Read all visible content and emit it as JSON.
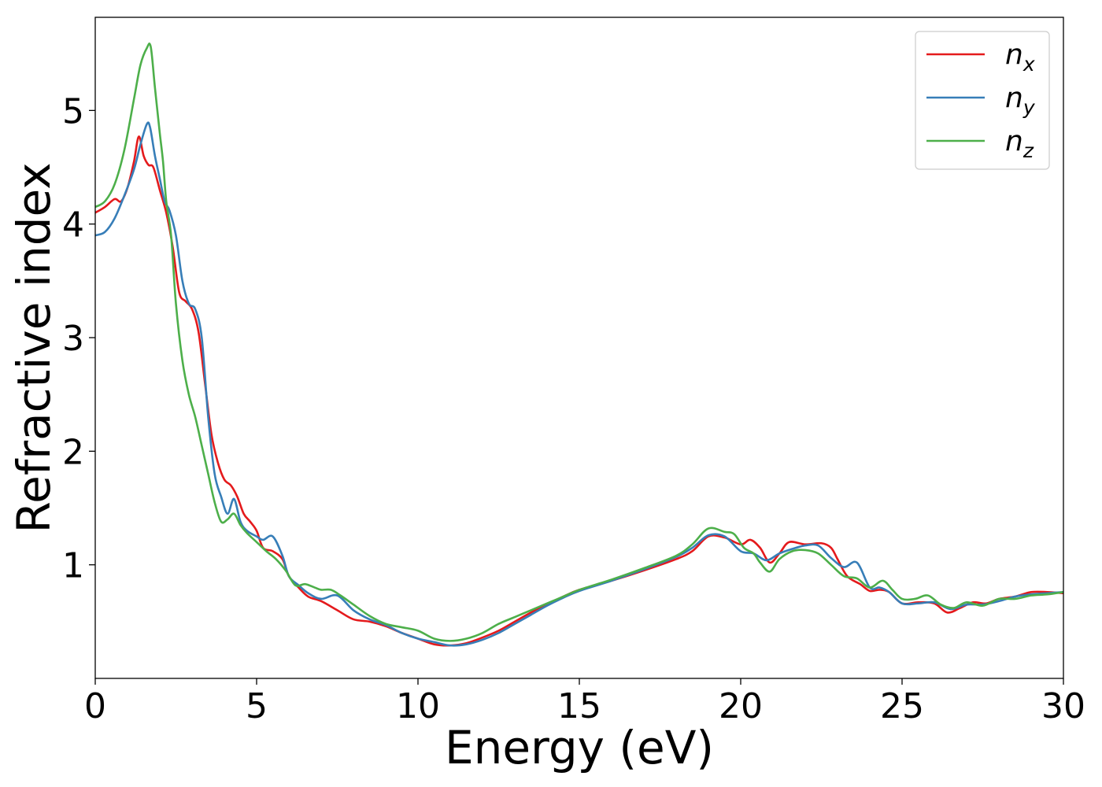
{
  "chart_data": {
    "type": "line",
    "title": "",
    "xlabel": "Energy (eV)",
    "ylabel": "Refractive index",
    "xlim": [
      0,
      30
    ],
    "ylim": [
      0,
      5.82
    ],
    "xticks": [
      0,
      5,
      10,
      15,
      20,
      25,
      30
    ],
    "yticks": [
      1,
      2,
      3,
      4,
      5
    ],
    "grid": false,
    "legend_position": "top-right",
    "series": [
      {
        "name": "n",
        "subscript": "x",
        "color": "#e41a1c",
        "points": [
          [
            0,
            4.1
          ],
          [
            0.3,
            4.15
          ],
          [
            0.6,
            4.22
          ],
          [
            0.8,
            4.2
          ],
          [
            1.0,
            4.32
          ],
          [
            1.2,
            4.55
          ],
          [
            1.35,
            4.77
          ],
          [
            1.5,
            4.6
          ],
          [
            1.65,
            4.52
          ],
          [
            1.8,
            4.5
          ],
          [
            2.0,
            4.3
          ],
          [
            2.2,
            4.1
          ],
          [
            2.4,
            3.8
          ],
          [
            2.6,
            3.4
          ],
          [
            2.8,
            3.32
          ],
          [
            3.0,
            3.25
          ],
          [
            3.2,
            3.05
          ],
          [
            3.4,
            2.6
          ],
          [
            3.6,
            2.15
          ],
          [
            3.8,
            1.9
          ],
          [
            4.0,
            1.75
          ],
          [
            4.2,
            1.7
          ],
          [
            4.4,
            1.6
          ],
          [
            4.6,
            1.45
          ],
          [
            4.8,
            1.38
          ],
          [
            5.0,
            1.3
          ],
          [
            5.2,
            1.15
          ],
          [
            5.5,
            1.12
          ],
          [
            5.8,
            1.05
          ],
          [
            6.0,
            0.9
          ],
          [
            6.3,
            0.8
          ],
          [
            6.6,
            0.72
          ],
          [
            7.0,
            0.68
          ],
          [
            7.5,
            0.6
          ],
          [
            8.0,
            0.52
          ],
          [
            8.5,
            0.5
          ],
          [
            9.0,
            0.46
          ],
          [
            9.5,
            0.4
          ],
          [
            10.0,
            0.35
          ],
          [
            10.5,
            0.3
          ],
          [
            11.0,
            0.29
          ],
          [
            11.5,
            0.31
          ],
          [
            12.0,
            0.36
          ],
          [
            12.5,
            0.42
          ],
          [
            13.0,
            0.5
          ],
          [
            13.5,
            0.58
          ],
          [
            14.0,
            0.65
          ],
          [
            14.5,
            0.72
          ],
          [
            15.0,
            0.78
          ],
          [
            16.0,
            0.86
          ],
          [
            17.0,
            0.95
          ],
          [
            18.0,
            1.05
          ],
          [
            18.5,
            1.12
          ],
          [
            19.0,
            1.25
          ],
          [
            19.5,
            1.24
          ],
          [
            20.0,
            1.18
          ],
          [
            20.3,
            1.22
          ],
          [
            20.6,
            1.15
          ],
          [
            20.9,
            1.02
          ],
          [
            21.2,
            1.1
          ],
          [
            21.5,
            1.2
          ],
          [
            22.0,
            1.18
          ],
          [
            22.5,
            1.19
          ],
          [
            22.8,
            1.15
          ],
          [
            23.0,
            1.05
          ],
          [
            23.3,
            0.9
          ],
          [
            23.7,
            0.83
          ],
          [
            24.0,
            0.77
          ],
          [
            24.3,
            0.78
          ],
          [
            24.6,
            0.76
          ],
          [
            25.0,
            0.66
          ],
          [
            25.5,
            0.67
          ],
          [
            26.0,
            0.66
          ],
          [
            26.4,
            0.58
          ],
          [
            26.8,
            0.62
          ],
          [
            27.2,
            0.67
          ],
          [
            27.6,
            0.66
          ],
          [
            28.0,
            0.7
          ],
          [
            28.5,
            0.72
          ],
          [
            29.0,
            0.76
          ],
          [
            29.5,
            0.76
          ],
          [
            30.0,
            0.75
          ]
        ]
      },
      {
        "name": "n",
        "subscript": "y",
        "color": "#377eb8",
        "points": [
          [
            0,
            3.9
          ],
          [
            0.3,
            3.93
          ],
          [
            0.6,
            4.05
          ],
          [
            0.9,
            4.25
          ],
          [
            1.2,
            4.48
          ],
          [
            1.4,
            4.7
          ],
          [
            1.6,
            4.88
          ],
          [
            1.7,
            4.85
          ],
          [
            1.85,
            4.6
          ],
          [
            2.0,
            4.4
          ],
          [
            2.15,
            4.2
          ],
          [
            2.3,
            4.12
          ],
          [
            2.5,
            3.9
          ],
          [
            2.7,
            3.5
          ],
          [
            2.9,
            3.3
          ],
          [
            3.1,
            3.25
          ],
          [
            3.3,
            3.0
          ],
          [
            3.5,
            2.3
          ],
          [
            3.7,
            1.8
          ],
          [
            3.9,
            1.6
          ],
          [
            4.1,
            1.45
          ],
          [
            4.3,
            1.58
          ],
          [
            4.5,
            1.38
          ],
          [
            4.7,
            1.3
          ],
          [
            5.0,
            1.25
          ],
          [
            5.2,
            1.22
          ],
          [
            5.5,
            1.25
          ],
          [
            5.8,
            1.08
          ],
          [
            6.0,
            0.9
          ],
          [
            6.3,
            0.82
          ],
          [
            6.6,
            0.75
          ],
          [
            7.0,
            0.7
          ],
          [
            7.5,
            0.73
          ],
          [
            8.0,
            0.6
          ],
          [
            8.5,
            0.52
          ],
          [
            9.0,
            0.47
          ],
          [
            9.5,
            0.4
          ],
          [
            10.0,
            0.35
          ],
          [
            10.5,
            0.32
          ],
          [
            11.0,
            0.29
          ],
          [
            11.5,
            0.3
          ],
          [
            12.0,
            0.34
          ],
          [
            12.5,
            0.4
          ],
          [
            13.0,
            0.48
          ],
          [
            13.5,
            0.56
          ],
          [
            14.0,
            0.64
          ],
          [
            14.5,
            0.71
          ],
          [
            15.0,
            0.77
          ],
          [
            16.0,
            0.86
          ],
          [
            17.0,
            0.96
          ],
          [
            18.0,
            1.07
          ],
          [
            18.5,
            1.15
          ],
          [
            19.0,
            1.26
          ],
          [
            19.5,
            1.25
          ],
          [
            20.0,
            1.12
          ],
          [
            20.4,
            1.1
          ],
          [
            20.8,
            1.04
          ],
          [
            21.2,
            1.1
          ],
          [
            21.6,
            1.14
          ],
          [
            22.0,
            1.17
          ],
          [
            22.4,
            1.17
          ],
          [
            22.8,
            1.06
          ],
          [
            23.2,
            0.98
          ],
          [
            23.6,
            1.02
          ],
          [
            24.0,
            0.8
          ],
          [
            24.3,
            0.8
          ],
          [
            24.6,
            0.76
          ],
          [
            25.0,
            0.66
          ],
          [
            25.5,
            0.66
          ],
          [
            26.0,
            0.67
          ],
          [
            26.5,
            0.61
          ],
          [
            27.0,
            0.65
          ],
          [
            27.5,
            0.65
          ],
          [
            28.0,
            0.68
          ],
          [
            28.5,
            0.72
          ],
          [
            29.0,
            0.74
          ],
          [
            29.5,
            0.75
          ],
          [
            30.0,
            0.76
          ]
        ]
      },
      {
        "name": "n",
        "subscript": "z",
        "color": "#4daf4a",
        "points": [
          [
            0,
            4.15
          ],
          [
            0.3,
            4.2
          ],
          [
            0.6,
            4.35
          ],
          [
            0.9,
            4.65
          ],
          [
            1.2,
            5.1
          ],
          [
            1.4,
            5.4
          ],
          [
            1.6,
            5.55
          ],
          [
            1.72,
            5.56
          ],
          [
            1.85,
            5.2
          ],
          [
            2.0,
            4.8
          ],
          [
            2.1,
            4.55
          ],
          [
            2.2,
            4.2
          ],
          [
            2.35,
            3.9
          ],
          [
            2.5,
            3.3
          ],
          [
            2.7,
            2.8
          ],
          [
            2.9,
            2.5
          ],
          [
            3.1,
            2.3
          ],
          [
            3.3,
            2.05
          ],
          [
            3.5,
            1.8
          ],
          [
            3.7,
            1.55
          ],
          [
            3.9,
            1.38
          ],
          [
            4.1,
            1.4
          ],
          [
            4.3,
            1.45
          ],
          [
            4.5,
            1.35
          ],
          [
            4.7,
            1.28
          ],
          [
            5.0,
            1.2
          ],
          [
            5.3,
            1.12
          ],
          [
            5.6,
            1.05
          ],
          [
            5.9,
            0.95
          ],
          [
            6.2,
            0.82
          ],
          [
            6.5,
            0.83
          ],
          [
            6.8,
            0.8
          ],
          [
            7.0,
            0.78
          ],
          [
            7.3,
            0.78
          ],
          [
            7.6,
            0.73
          ],
          [
            8.0,
            0.65
          ],
          [
            8.5,
            0.55
          ],
          [
            9.0,
            0.48
          ],
          [
            9.5,
            0.45
          ],
          [
            10.0,
            0.42
          ],
          [
            10.5,
            0.35
          ],
          [
            11.0,
            0.33
          ],
          [
            11.5,
            0.35
          ],
          [
            12.0,
            0.4
          ],
          [
            12.5,
            0.48
          ],
          [
            13.0,
            0.54
          ],
          [
            13.5,
            0.6
          ],
          [
            14.0,
            0.66
          ],
          [
            14.5,
            0.72
          ],
          [
            15.0,
            0.78
          ],
          [
            16.0,
            0.87
          ],
          [
            17.0,
            0.97
          ],
          [
            18.0,
            1.08
          ],
          [
            18.5,
            1.18
          ],
          [
            19.0,
            1.32
          ],
          [
            19.5,
            1.29
          ],
          [
            19.8,
            1.27
          ],
          [
            20.1,
            1.15
          ],
          [
            20.4,
            1.1
          ],
          [
            20.6,
            1.02
          ],
          [
            20.9,
            0.94
          ],
          [
            21.2,
            1.05
          ],
          [
            21.6,
            1.12
          ],
          [
            22.0,
            1.13
          ],
          [
            22.4,
            1.1
          ],
          [
            22.8,
            1.0
          ],
          [
            23.2,
            0.9
          ],
          [
            23.6,
            0.88
          ],
          [
            24.0,
            0.8
          ],
          [
            24.4,
            0.86
          ],
          [
            24.7,
            0.78
          ],
          [
            25.0,
            0.7
          ],
          [
            25.4,
            0.7
          ],
          [
            25.8,
            0.73
          ],
          [
            26.2,
            0.65
          ],
          [
            26.6,
            0.62
          ],
          [
            27.0,
            0.67
          ],
          [
            27.5,
            0.64
          ],
          [
            28.0,
            0.7
          ],
          [
            28.5,
            0.7
          ],
          [
            29.0,
            0.73
          ],
          [
            29.5,
            0.74
          ],
          [
            30.0,
            0.76
          ]
        ]
      }
    ]
  }
}
